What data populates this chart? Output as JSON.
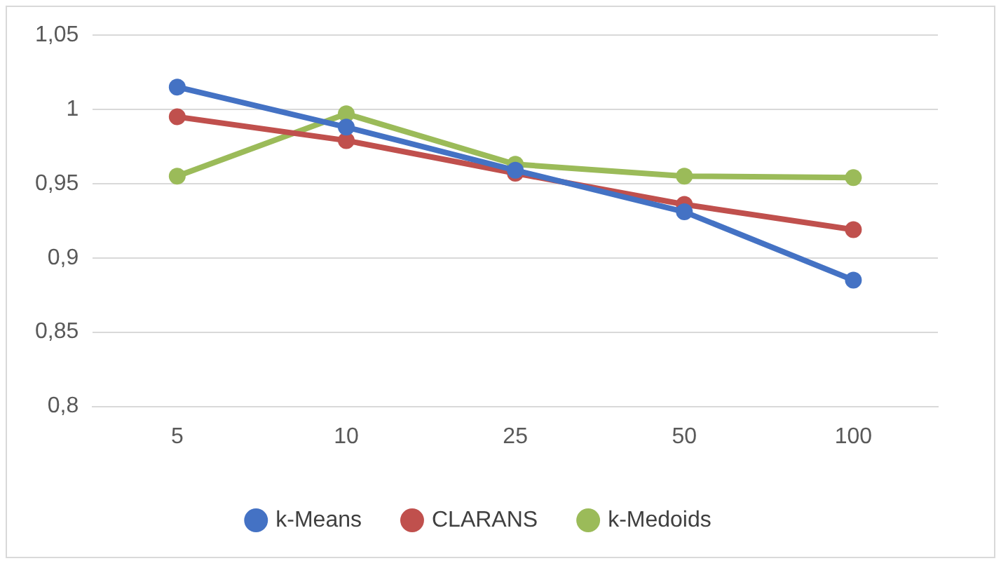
{
  "chart_data": {
    "type": "line",
    "categories": [
      "5",
      "10",
      "25",
      "50",
      "100"
    ],
    "series": [
      {
        "name": "k-Means",
        "color": "#4472c4",
        "values": [
          1.015,
          0.988,
          0.959,
          0.931,
          0.885
        ]
      },
      {
        "name": "CLARANS",
        "color": "#c0504d",
        "values": [
          0.995,
          0.979,
          0.957,
          0.936,
          0.919
        ]
      },
      {
        "name": "k-Medoids",
        "color": "#9bbb59",
        "values": [
          0.955,
          0.997,
          0.963,
          0.955,
          0.954
        ]
      }
    ],
    "ylim": [
      0.8,
      1.05
    ],
    "yticks": [
      {
        "value": 0.8,
        "label": "0,8"
      },
      {
        "value": 0.85,
        "label": "0,85"
      },
      {
        "value": 0.9,
        "label": "0,9"
      },
      {
        "value": 0.95,
        "label": "0,95"
      },
      1,
      {
        "value": 1.05,
        "label": "1,05"
      }
    ],
    "grid": "y",
    "legend": "bottom",
    "marker": "circle",
    "line_style": "solid"
  }
}
